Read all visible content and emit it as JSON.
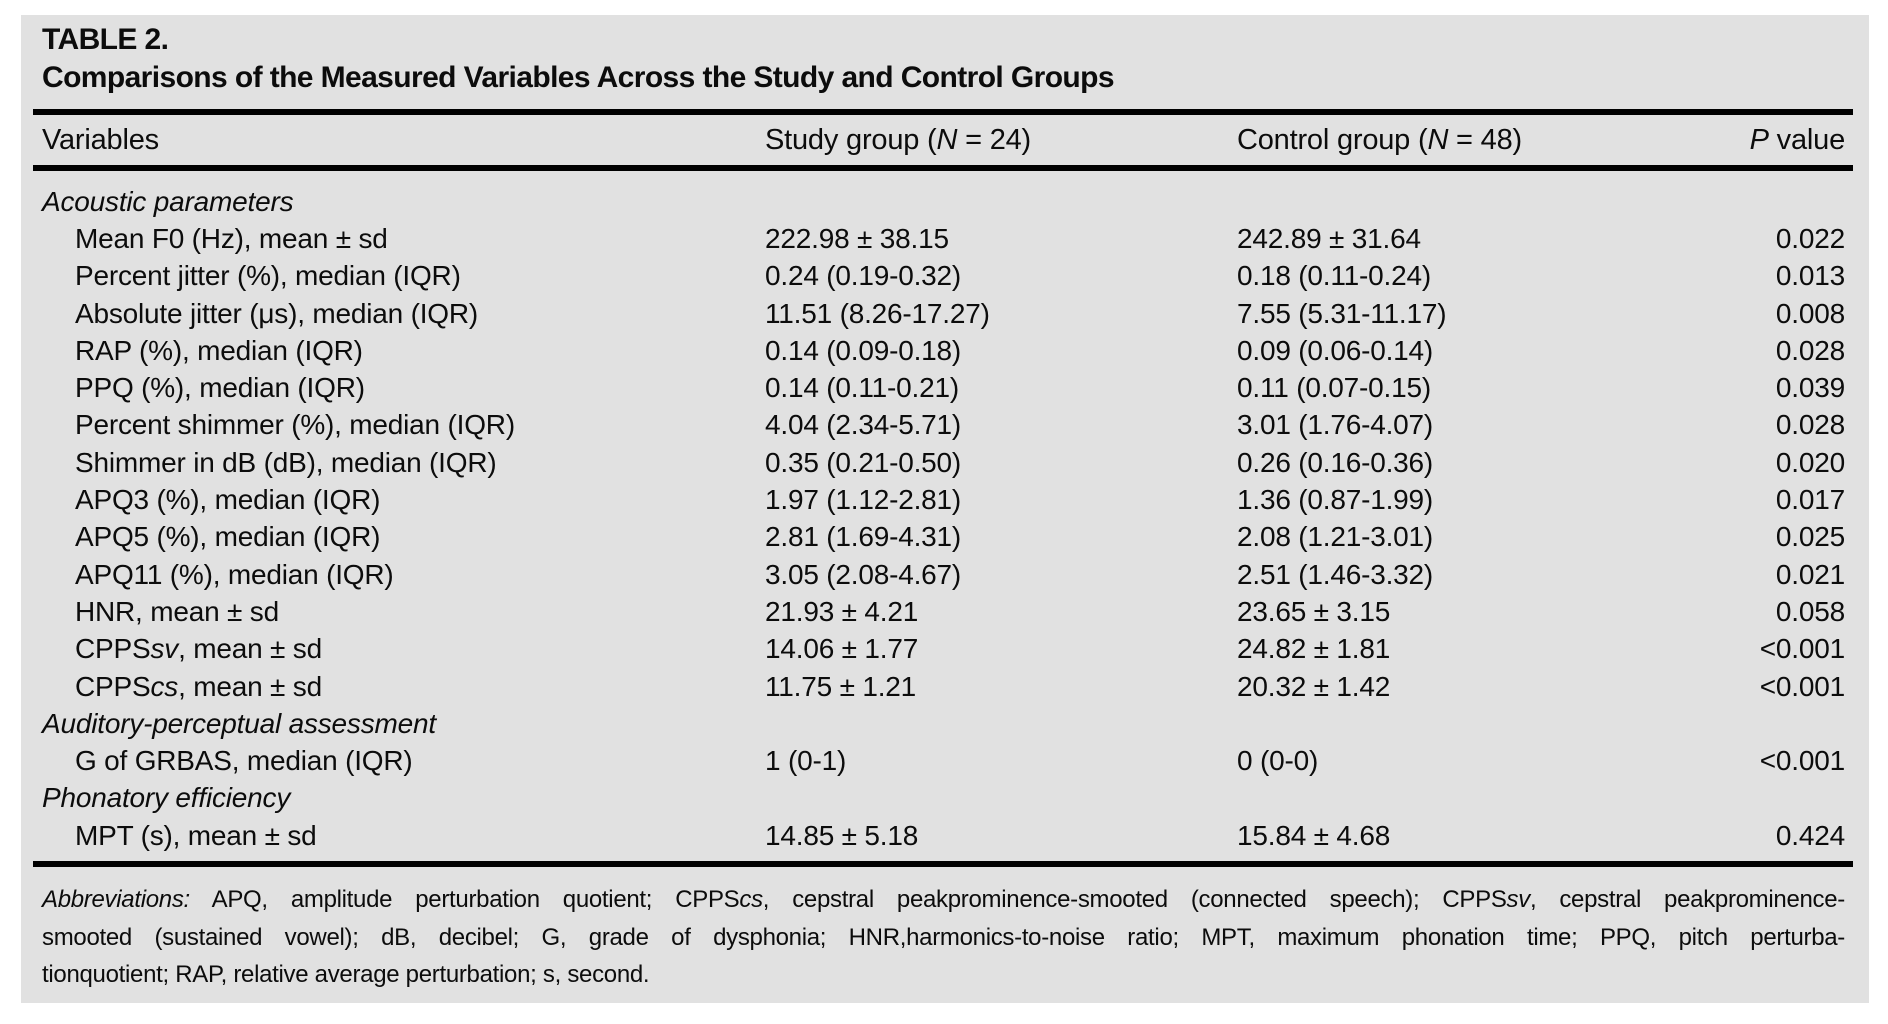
{
  "page": {
    "background_color": "#ffffff",
    "card_background_color": "#e1e1e1",
    "text_color": "#0c0c0c",
    "rule_color": "#000000"
  },
  "table": {
    "label": "TABLE 2.",
    "title": "Comparisons of the Measured Variables Across the Study and Control Groups",
    "columns": [
      "Variables",
      "Study group (*N* = 24)",
      "Control group (*N* = 48)",
      "*P* value"
    ],
    "sections": [
      {
        "header": "Acoustic parameters",
        "rows": [
          {
            "label": "Mean F0 (Hz), mean ± sd",
            "study": "222.98 ± 38.15",
            "control": "242.89 ± 31.64",
            "p": "0.022"
          },
          {
            "label": "Percent jitter (%), median (IQR)",
            "study": "0.24 (0.19-0.32)",
            "control": "0.18 (0.11-0.24)",
            "p": "0.013"
          },
          {
            "label": "Absolute jitter (μs), median (IQR)",
            "study": "11.51 (8.26-17.27)",
            "control": "7.55 (5.31-11.17)",
            "p": "0.008"
          },
          {
            "label": "RAP (%), median (IQR)",
            "study": "0.14 (0.09-0.18)",
            "control": "0.09 (0.06-0.14)",
            "p": "0.028"
          },
          {
            "label": "PPQ (%), median (IQR)",
            "study": "0.14 (0.11-0.21)",
            "control": "0.11 (0.07-0.15)",
            "p": "0.039"
          },
          {
            "label": "Percent shimmer (%), median (IQR)",
            "study": "4.04 (2.34-5.71)",
            "control": "3.01 (1.76-4.07)",
            "p": "0.028"
          },
          {
            "label": "Shimmer in dB (dB), median (IQR)",
            "study": "0.35 (0.21-0.50)",
            "control": "0.26 (0.16-0.36)",
            "p": "0.020"
          },
          {
            "label": "APQ3 (%), median (IQR)",
            "study": "1.97 (1.12-2.81)",
            "control": "1.36 (0.87-1.99)",
            "p": "0.017"
          },
          {
            "label": "APQ5 (%), median (IQR)",
            "study": "2.81 (1.69-4.31)",
            "control": "2.08 (1.21-3.01)",
            "p": "0.025"
          },
          {
            "label": "APQ11 (%), median (IQR)",
            "study": "3.05 (2.08-4.67)",
            "control": "2.51 (1.46-3.32)",
            "p": "0.021"
          },
          {
            "label": "HNR, mean ± sd",
            "study": "21.93 ± 4.21",
            "control": "23.65 ± 3.15",
            "p": "0.058"
          },
          {
            "label": "CPPS*sv*, mean ± sd",
            "study": "14.06 ± 1.77",
            "control": "24.82 ± 1.81",
            "p": "<0.001"
          },
          {
            "label": "CPPS*cs*, mean ± sd",
            "study": "11.75 ± 1.21",
            "control": "20.32 ± 1.42",
            "p": "<0.001"
          }
        ]
      },
      {
        "header": "Auditory-perceptual assessment",
        "rows": [
          {
            "label": "G of GRBAS, median (IQR)",
            "study": "1 (0-1)",
            "control": "0 (0-0)",
            "p": "<0.001"
          }
        ]
      },
      {
        "header": "Phonatory efficiency",
        "rows": [
          {
            "label": "MPT (s), mean ± sd",
            "study": "14.85 ± 5.18",
            "control": "15.84 ± 4.68",
            "p": "0.424"
          }
        ]
      }
    ],
    "footnote_lines": [
      "*Abbreviations:* APQ, amplitude perturbation quotient; CPPS*cs*, cepstral peakprominence-smooted (connected speech); CPPS*sv*, cepstral peakprominence-",
      "smooted (sustained vowel); dB, decibel; G, grade of dysphonia; HNR,harmonics-to-noise ratio; MPT, maximum phonation time; PPQ, pitch perturba-",
      "tionquotient; RAP, relative average perturbation; s, second."
    ]
  }
}
